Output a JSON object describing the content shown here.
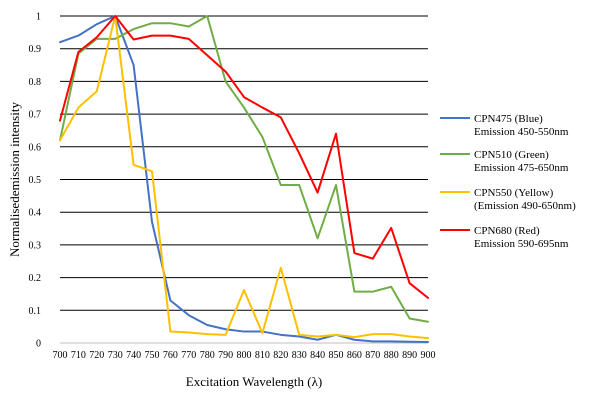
{
  "chart_data": {
    "type": "line",
    "title": "",
    "xlabel": "Excitation Wavelength (λ)",
    "ylabel": "Normalisedemission intensity",
    "x": [
      700,
      710,
      720,
      730,
      740,
      750,
      760,
      770,
      780,
      790,
      800,
      810,
      820,
      830,
      840,
      850,
      860,
      870,
      880,
      890,
      900
    ],
    "ylim": [
      0,
      1
    ],
    "yticks": [
      "0",
      "0.1",
      "0.2",
      "0.3",
      "0.4",
      "0.5",
      "0.6",
      "0.7",
      "0.8",
      "0.9",
      "1"
    ],
    "xticks": [
      "700",
      "710",
      "720",
      "730",
      "740",
      "750",
      "760",
      "770",
      "780",
      "790",
      "800",
      "810",
      "820",
      "830",
      "840",
      "850",
      "860",
      "870",
      "880",
      "890",
      "900"
    ],
    "grid": "horizontal",
    "legend_position": "right",
    "series": [
      {
        "name": "CPN475 (Blue)",
        "subtitle": "Emission 450-550nm",
        "color": "#4472c4",
        "values": [
          0.92,
          0.94,
          0.975,
          1.0,
          0.85,
          0.37,
          0.13,
          0.085,
          0.055,
          0.042,
          0.035,
          0.035,
          0.025,
          0.02,
          0.01,
          0.025,
          0.01,
          0.005,
          0.005,
          0.004,
          0.003
        ]
      },
      {
        "name": "CPN510 (Green)",
        "subtitle": "Emission 475-650nm",
        "color": "#70ad47",
        "values": [
          0.62,
          0.885,
          0.93,
          0.93,
          0.96,
          0.978,
          0.978,
          0.968,
          1.0,
          0.8,
          0.72,
          0.63,
          0.483,
          0.483,
          0.32,
          0.483,
          0.157,
          0.157,
          0.172,
          0.075,
          0.065
        ]
      },
      {
        "name": "CPN550 (Yellow)",
        "subtitle": "(Emission 490-650nm)",
        "color": "#ffc000",
        "values": [
          0.62,
          0.72,
          0.77,
          1.0,
          0.545,
          0.525,
          0.035,
          0.032,
          0.027,
          0.025,
          0.162,
          0.03,
          0.23,
          0.025,
          0.02,
          0.025,
          0.018,
          0.027,
          0.027,
          0.02,
          0.015
        ]
      },
      {
        "name": "CPN680 (Red)",
        "subtitle": "Emission 590-695nm",
        "color": "#ff0000",
        "values": [
          0.68,
          0.89,
          0.935,
          1.0,
          0.928,
          0.94,
          0.94,
          0.93,
          0.88,
          0.83,
          0.752,
          0.72,
          0.69,
          0.58,
          0.46,
          0.64,
          0.275,
          0.258,
          0.352,
          0.183,
          0.138
        ]
      }
    ]
  }
}
